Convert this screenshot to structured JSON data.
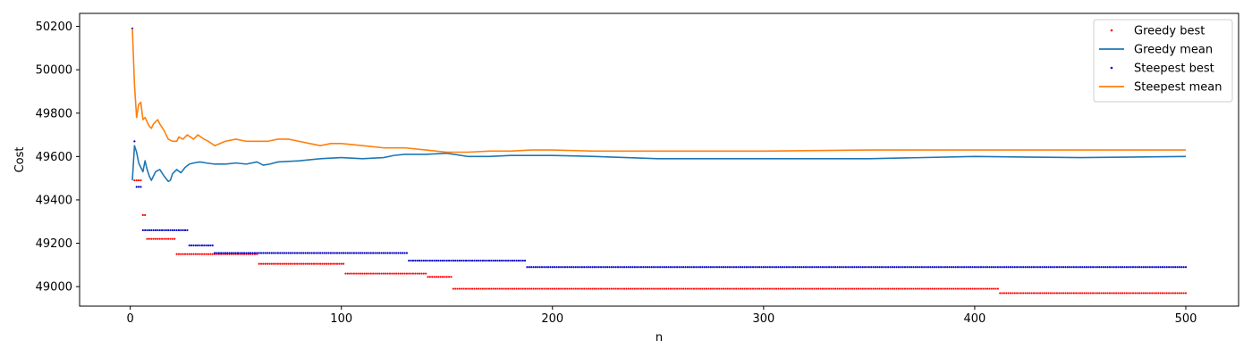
{
  "chart_data": {
    "type": "line",
    "title": "",
    "xlabel": "n",
    "ylabel": "Cost",
    "xlim": [
      -24,
      525
    ],
    "ylim": [
      48910,
      50260
    ],
    "xticks": [
      0,
      100,
      200,
      300,
      400,
      500
    ],
    "yticks": [
      49000,
      49200,
      49400,
      49600,
      49800,
      50000,
      50200
    ],
    "grid": false,
    "legend_position": "top-right",
    "series": [
      {
        "name": "Greedy best",
        "kind": "points",
        "color": "#ff0000",
        "steps": [
          {
            "from": 1,
            "to": 1,
            "value": 50190
          },
          {
            "from": 2,
            "to": 5,
            "value": 49490
          },
          {
            "from": 6,
            "to": 7,
            "value": 49330
          },
          {
            "from": 8,
            "to": 21,
            "value": 49220
          },
          {
            "from": 22,
            "to": 60,
            "value": 49150
          },
          {
            "from": 61,
            "to": 101,
            "value": 49105
          },
          {
            "from": 102,
            "to": 140,
            "value": 49060
          },
          {
            "from": 141,
            "to": 152,
            "value": 49045
          },
          {
            "from": 153,
            "to": 411,
            "value": 48990
          },
          {
            "from": 412,
            "to": 500,
            "value": 48970
          }
        ]
      },
      {
        "name": "Greedy mean",
        "kind": "line",
        "color": "#1f77b4",
        "x": [
          1,
          2,
          3,
          4,
          5,
          6,
          7,
          8,
          9,
          10,
          12,
          14,
          16,
          18,
          19,
          20,
          22,
          24,
          26,
          28,
          30,
          33,
          36,
          40,
          45,
          50,
          55,
          60,
          63,
          66,
          70,
          80,
          90,
          100,
          110,
          120,
          125,
          130,
          140,
          150,
          160,
          170,
          180,
          190,
          200,
          220,
          250,
          300,
          350,
          400,
          450,
          500
        ],
        "values": [
          49490,
          49650,
          49620,
          49570,
          49550,
          49530,
          49580,
          49540,
          49510,
          49490,
          49530,
          49540,
          49510,
          49485,
          49490,
          49520,
          49540,
          49525,
          49550,
          49565,
          49570,
          49575,
          49570,
          49565,
          49565,
          49570,
          49565,
          49575,
          49560,
          49565,
          49575,
          49580,
          49590,
          49595,
          49590,
          49595,
          49605,
          49610,
          49610,
          49615,
          49600,
          49600,
          49605,
          49605,
          49605,
          49600,
          49590,
          49590,
          49590,
          49600,
          49595,
          49600
        ]
      },
      {
        "name": "Steepest best",
        "kind": "points",
        "color": "#0000cc",
        "steps": [
          {
            "from": 1,
            "to": 1,
            "value": 50190
          },
          {
            "from": 2,
            "to": 2,
            "value": 49670
          },
          {
            "from": 3,
            "to": 5,
            "value": 49460
          },
          {
            "from": 6,
            "to": 27,
            "value": 49260
          },
          {
            "from": 28,
            "to": 39,
            "value": 49190
          },
          {
            "from": 40,
            "to": 131,
            "value": 49155
          },
          {
            "from": 132,
            "to": 187,
            "value": 49120
          },
          {
            "from": 188,
            "to": 500,
            "value": 49090
          }
        ]
      },
      {
        "name": "Steepest mean",
        "kind": "line",
        "color": "#ff7f0e",
        "x": [
          1,
          2,
          3,
          4,
          5,
          6,
          7,
          8,
          9,
          10,
          11,
          12,
          13,
          14,
          16,
          18,
          20,
          22,
          23,
          25,
          27,
          30,
          32,
          35,
          37,
          40,
          45,
          50,
          55,
          60,
          65,
          70,
          75,
          80,
          85,
          90,
          95,
          100,
          110,
          120,
          130,
          140,
          150,
          160,
          170,
          180,
          190,
          200,
          220,
          250,
          300,
          350,
          400,
          450,
          500
        ],
        "values": [
          50190,
          49930,
          49780,
          49840,
          49850,
          49770,
          49780,
          49760,
          49740,
          49730,
          49750,
          49760,
          49770,
          49750,
          49720,
          49680,
          49670,
          49670,
          49690,
          49680,
          49700,
          49680,
          49700,
          49680,
          49670,
          49650,
          49670,
          49680,
          49670,
          49670,
          49670,
          49680,
          49680,
          49670,
          49660,
          49650,
          49660,
          49660,
          49650,
          49640,
          49640,
          49630,
          49620,
          49620,
          49625,
          49625,
          49630,
          49630,
          49625,
          49625,
          49625,
          49630,
          49630,
          49630,
          49630
        ]
      }
    ]
  }
}
